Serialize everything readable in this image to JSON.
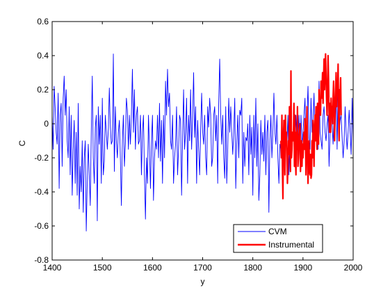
{
  "chart_data": {
    "type": "line",
    "title": "",
    "xlabel": "y",
    "ylabel": "C",
    "xlim": [
      1400,
      2000
    ],
    "ylim": [
      -0.8,
      0.6
    ],
    "xticks": [
      1400,
      1500,
      1600,
      1700,
      1800,
      1900,
      2000
    ],
    "xtick_labels": [
      "1400",
      "1500",
      "1600",
      "1700",
      "1800",
      "1900",
      "2000"
    ],
    "yticks": [
      -0.8,
      -0.6,
      -0.4,
      -0.2,
      0,
      0.2,
      0.4,
      0.6
    ],
    "ytick_labels": [
      "-0.8",
      "-0.6",
      "-0.4",
      "-0.2",
      "0",
      "0.2",
      "0.4",
      "0.6"
    ],
    "grid": false,
    "legend_position": "bottom-right",
    "series": [
      {
        "name": "CVM",
        "color": "#0000ff",
        "x_start": 1400,
        "x_step": 2,
        "values": [
          0.05,
          -0.15,
          0.22,
          0.1,
          -0.05,
          -0.12,
          0.18,
          -0.38,
          0.05,
          0.12,
          -0.25,
          0.15,
          0.28,
          0.05,
          0.2,
          -0.1,
          -0.2,
          0.1,
          -0.3,
          0.05,
          -0.42,
          -0.15,
          0.02,
          -0.35,
          -0.05,
          -0.42,
          0.12,
          -0.5,
          -0.25,
          -0.4,
          -0.1,
          -0.52,
          -0.2,
          -0.1,
          -0.63,
          -0.35,
          -0.12,
          -0.3,
          -0.48,
          -0.05,
          0.28,
          -0.2,
          -0.35,
          -0.02,
          0.05,
          -0.57,
          0.1,
          -0.12,
          0.05,
          -0.35,
          0.15,
          -0.3,
          -0.22,
          0.05,
          -0.05,
          -0.15,
          -0.03,
          0.21,
          -0.02,
          -0.12,
          -0.1,
          0.41,
          -0.28,
          0.1,
          -0.1,
          -0.2,
          -0.05,
          0.02,
          -0.2,
          -0.48,
          -0.1,
          0.05,
          -0.25,
          -0.12,
          0.15,
          0.08,
          -0.15,
          0.05,
          -0.12,
          0.05,
          0.32,
          -0.05,
          0.2,
          -0.15,
          0.05,
          0.1,
          -0.12,
          -0.1,
          0.05,
          -0.3,
          -0.05,
          0.05,
          -0.3,
          -0.56,
          -0.2,
          -0.35,
          0.05,
          -0.15,
          -0.38,
          -0.1,
          0.05,
          -0.45,
          -0.2,
          -0.1,
          -0.15,
          0.05,
          -0.2,
          0.12,
          -0.22,
          0.02,
          -0.35,
          0.05,
          -0.2,
          0.25,
          0.05,
          0.32,
          0.1,
          0.18,
          -0.1,
          -0.15,
          0.05,
          -0.35,
          -0.2,
          -0.12,
          0.1,
          -0.3,
          -0.15,
          0.05,
          0.02,
          -0.42,
          -0.1,
          0.2,
          -0.15,
          -0.05,
          0.15,
          -0.35,
          0.05,
          -0.1,
          0.2,
          -0.15,
          0.05,
          0.3,
          -0.08,
          0.1,
          -0.35,
          0.02,
          -0.15,
          -0.3,
          -0.05,
          0.18,
          -0.05,
          -0.12,
          0.05,
          -0.2,
          -0.3,
          0.1,
          -0.02,
          0.15,
          0.05,
          -0.25,
          -0.2,
          0.05,
          0.1,
          -0.1,
          0.05,
          -0.35,
          0.12,
          0.38,
          0.05,
          -0.12,
          0.05,
          -0.2,
          -0.32,
          0.1,
          -0.35,
          -0.15,
          0.15,
          -0.05,
          0.1,
          -0.05,
          -0.18,
          -0.05,
          0.15,
          -0.38,
          -0.12,
          0.05,
          -0.2,
          0.08,
          0.05,
          0.15,
          -0.35,
          -0.05,
          -0.25,
          -0.08,
          -0.1,
          0.0,
          -0.3,
          0.05,
          -0.18,
          -0.02,
          -0.42,
          0.05,
          -0.2,
          0.15,
          -0.25,
          0.0,
          -0.45,
          -0.3,
          0.02,
          -0.18,
          -0.05,
          -0.22,
          0.05,
          -0.3,
          -0.05,
          0.02,
          -0.52,
          -0.1,
          0.05,
          -0.2,
          -0.05,
          0.18,
          -0.05,
          -0.12,
          0.05,
          -0.2,
          -0.35,
          -0.12,
          -0.15,
          0.05,
          -0.12,
          -0.08,
          -0.18,
          -0.02,
          -0.12,
          0.05,
          -0.3,
          -0.05,
          0.0,
          -0.15,
          -0.05,
          0.02,
          -0.12,
          0.05,
          -0.15,
          -0.12,
          0.05,
          -0.2,
          0.05,
          -0.12,
          -0.05,
          0.05,
          0.15,
          -0.1,
          0.05,
          0.22,
          -0.08,
          -0.15,
          0.15,
          -0.05,
          0.02,
          0.18,
          -0.1,
          0.0,
          0.1,
          -0.15,
          0.25,
          -0.05,
          -0.1,
          -0.15,
          0.05,
          0.1,
          -0.05,
          -0.1,
          0.0,
          0.05,
          -0.25,
          -0.05,
          0.1,
          0.0,
          -0.12,
          0.05,
          -0.02,
          0.18,
          -0.15,
          0.25,
          -0.05,
          0.02,
          0.05,
          -0.08,
          -0.2,
          -0.1,
          0.1,
          -0.05,
          -0.15,
          -0.05,
          0.08,
          -0.05,
          -0.18,
          0.15,
          -0.12
        ]
      },
      {
        "name": "Instrumental",
        "color": "#ff0000",
        "x_start": 1856,
        "x_step": 1,
        "values": [
          -0.1,
          -0.2,
          0.05,
          -0.25,
          -0.44,
          -0.1,
          0.02,
          -0.15,
          -0.3,
          0.05,
          -0.12,
          -0.05,
          -0.2,
          -0.35,
          -0.25,
          -0.1,
          -0.18,
          0.1,
          -0.05,
          -0.28,
          0.31,
          -0.2,
          -0.15,
          -0.05,
          -0.1,
          -0.05,
          0.12,
          -0.25,
          0.05,
          -0.2,
          -0.3,
          -0.05,
          -0.15,
          0.1,
          -0.25,
          -0.2,
          -0.1,
          -0.05,
          0.0,
          -0.28,
          -0.18,
          -0.1,
          -0.25,
          -0.12,
          -0.2,
          -0.12,
          -0.05,
          -0.15,
          0.03,
          -0.1,
          -0.3,
          -0.1,
          0.1,
          -0.15,
          -0.35,
          -0.2,
          -0.1,
          -0.28,
          -0.3,
          -0.18,
          -0.32,
          -0.3,
          -0.1,
          -0.2,
          0.02,
          -0.05,
          -0.25,
          -0.05,
          0.05,
          -0.1,
          0.1,
          -0.05,
          -0.15,
          0.12,
          0.05,
          -0.12,
          0.2,
          0.1,
          0.15,
          0.05,
          0.25,
          0.15,
          0.2,
          0.3,
          0.12,
          0.25,
          0.38,
          0.2,
          0.32,
          0.41,
          0.28,
          0.15,
          0.05,
          0.2,
          0.4,
          0.25,
          0.05,
          -0.05,
          0.12,
          -0.05,
          0.15,
          0.05,
          0.1,
          0.0,
          0.15,
          0.25,
          0.12,
          -0.1,
          0.05,
          0.18,
          0.3,
          0.1,
          0.25,
          0.2,
          0.35,
          0.05,
          -0.1,
          0.2,
          0.15,
          0.27,
          0.05
        ]
      }
    ]
  }
}
